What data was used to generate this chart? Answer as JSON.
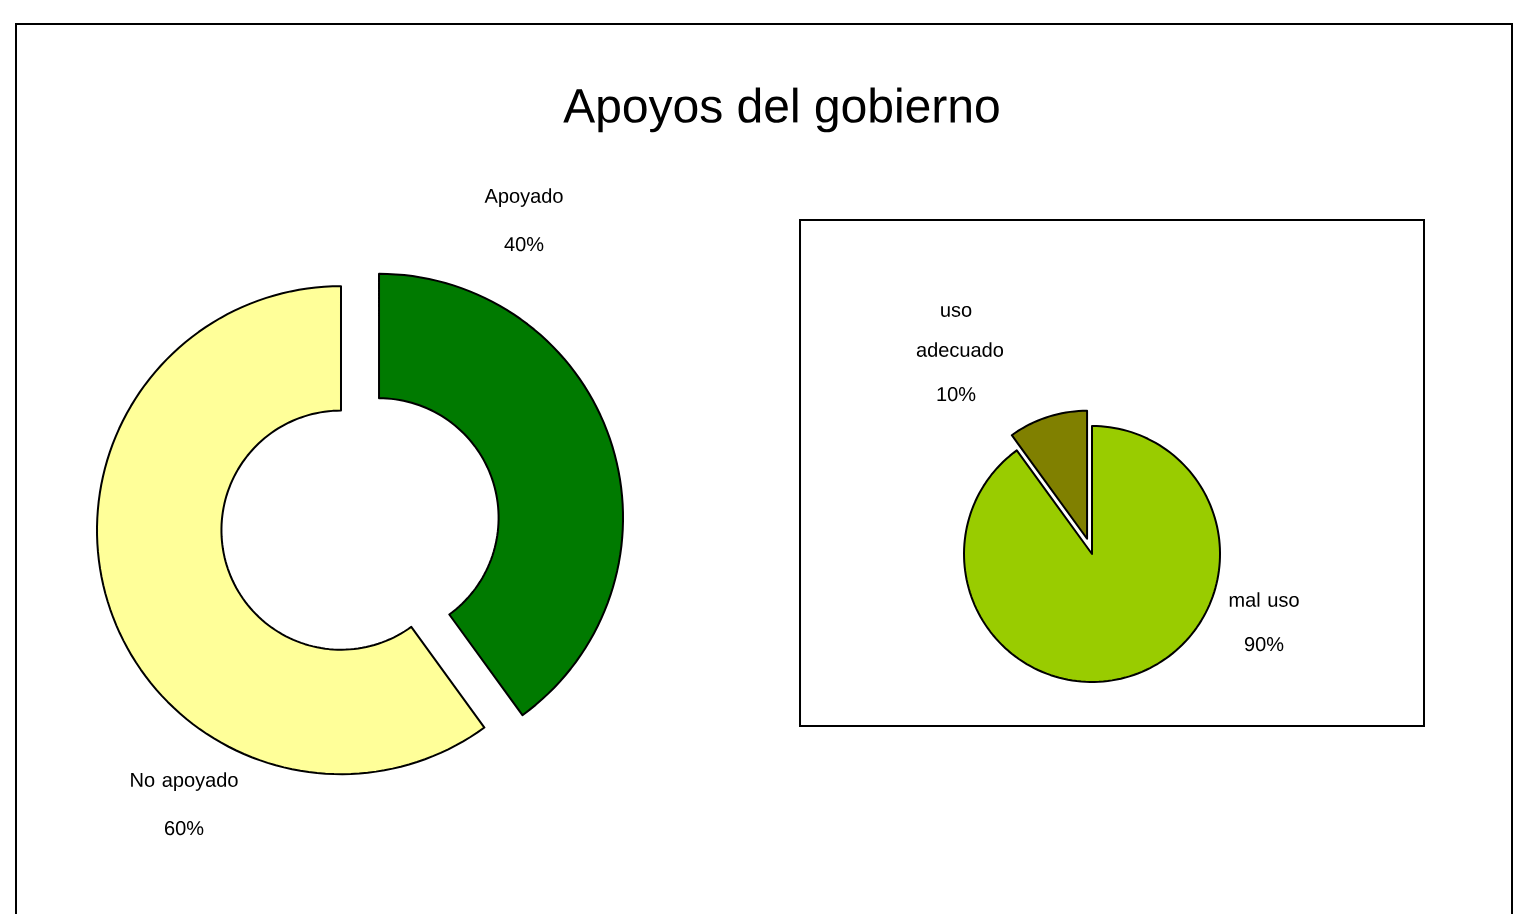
{
  "chart_data": [
    {
      "type": "donut",
      "title": "Apoyos del gobierno",
      "categories": [
        "Apoyado",
        "No apoyado"
      ],
      "values": [
        40,
        60
      ],
      "colors": [
        "#007a00",
        "#ffff99"
      ],
      "value_labels": [
        "40%",
        "60%"
      ]
    },
    {
      "type": "pie",
      "categories": [
        "uso adecuado",
        "mal uso"
      ],
      "values": [
        10,
        90
      ],
      "colors": [
        "#808000",
        "#99cc00"
      ],
      "value_labels": [
        "10%",
        "90%"
      ]
    }
  ]
}
